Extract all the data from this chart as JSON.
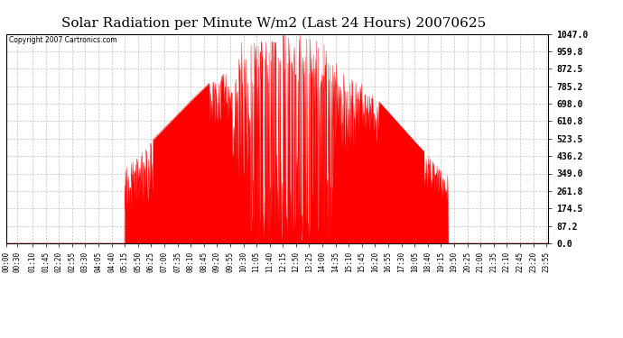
{
  "title": "Solar Radiation per Minute W/m2 (Last 24 Hours) 20070625",
  "copyright_text": "Copyright 2007 Cartronics.com",
  "y_ticks": [
    0.0,
    87.2,
    174.5,
    261.8,
    349.0,
    436.2,
    523.5,
    610.8,
    698.0,
    785.2,
    872.5,
    959.8,
    1047.0
  ],
  "y_max": 1047.0,
  "y_min": 0.0,
  "fill_color": "#ff0000",
  "line_color": "#ff0000",
  "background_color": "#ffffff",
  "grid_color": "#aaaaaa",
  "dashed_line_color": "#ff0000",
  "title_fontsize": 11,
  "sunrise_hour": 5.25,
  "sunset_hour": 19.55,
  "peak_hour": 12.5,
  "peak_value": 1047.0,
  "x_labels": [
    "00:00",
    "00:30",
    "01:10",
    "01:45",
    "02:20",
    "02:55",
    "03:30",
    "04:05",
    "04:40",
    "05:15",
    "05:50",
    "06:25",
    "07:00",
    "07:35",
    "08:10",
    "08:45",
    "09:20",
    "09:55",
    "10:30",
    "11:05",
    "11:40",
    "12:15",
    "12:50",
    "13:25",
    "14:00",
    "14:35",
    "15:10",
    "15:45",
    "16:20",
    "16:55",
    "17:30",
    "18:05",
    "18:40",
    "19:15",
    "19:50",
    "20:25",
    "21:00",
    "21:35",
    "22:10",
    "22:45",
    "23:20",
    "23:55"
  ],
  "x_tick_hours": [
    0.0,
    0.5,
    1.1667,
    1.75,
    2.3333,
    2.9167,
    3.5,
    4.0833,
    4.6667,
    5.25,
    5.8333,
    6.4167,
    7.0,
    7.5833,
    8.1667,
    8.75,
    9.3333,
    9.9167,
    10.5,
    11.0833,
    11.6667,
    12.25,
    12.8333,
    13.4167,
    14.0,
    14.5833,
    15.1667,
    15.75,
    16.3333,
    16.9167,
    17.5,
    18.0833,
    18.6667,
    19.25,
    19.8333,
    20.4167,
    21.0,
    21.5833,
    22.1667,
    22.75,
    23.3333,
    23.9167
  ]
}
